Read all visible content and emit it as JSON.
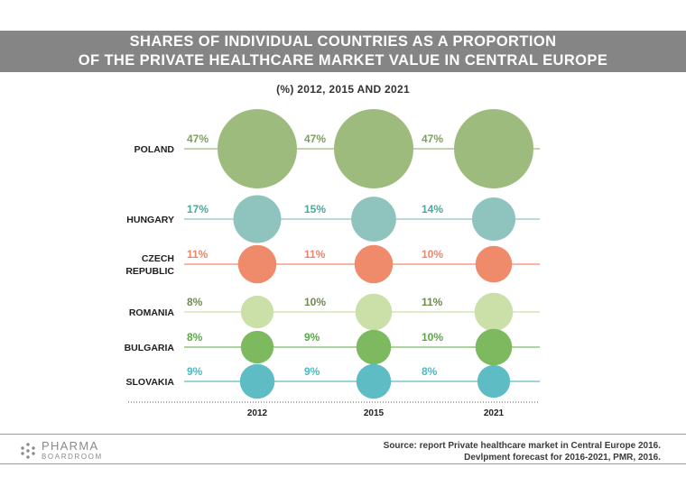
{
  "header": {
    "title_line1": "SHARES OF INDIVIDUAL COUNTRIES AS A PROPORTION",
    "title_line2": "OF THE PRIVATE HEALTHCARE MARKET VALUE IN CENTRAL EUROPE",
    "subtitle": "(%) 2012, 2015 AND 2021"
  },
  "chart_data": {
    "type": "scatter",
    "subtype": "bubble-matrix",
    "title": "SHARES OF INDIVIDUAL COUNTRIES AS A PROPORTION OF THE PRIVATE HEALTHCARE MARKET VALUE IN CENTRAL EUROPE",
    "subtitle": "(%) 2012, 2015 AND 2021",
    "unit": "%",
    "years": [
      "2012",
      "2015",
      "2021"
    ],
    "series": [
      {
        "name": "POLAND",
        "label_lines": [
          "POLAND"
        ],
        "color": "#9dbb7c",
        "text_color": "#7ea05a",
        "values": [
          47,
          47,
          47
        ],
        "labels": [
          "47%",
          "47%",
          "47%"
        ]
      },
      {
        "name": "HUNGARY",
        "label_lines": [
          "HUNGARY"
        ],
        "color": "#8fc3bd",
        "text_color": "#4aa89c",
        "values": [
          17,
          15,
          14
        ],
        "labels": [
          "17%",
          "15%",
          "14%"
        ]
      },
      {
        "name": "CZECH REPUBLIC",
        "label_lines": [
          "CZECH",
          "REPUBLIC"
        ],
        "color": "#ef8b6b",
        "text_color": "#e9866a",
        "values": [
          11,
          11,
          10
        ],
        "labels": [
          "11%",
          "11%",
          "10%"
        ]
      },
      {
        "name": "ROMANIA",
        "label_lines": [
          "ROMANIA"
        ],
        "color": "#cbe0a8",
        "text_color": "#6f8a52",
        "values": [
          8,
          10,
          11
        ],
        "labels": [
          "8%",
          "10%",
          "11%"
        ]
      },
      {
        "name": "BULGARIA",
        "label_lines": [
          "BULGARIA"
        ],
        "color": "#7dba5f",
        "text_color": "#5aa646",
        "values": [
          8,
          9,
          10
        ],
        "labels": [
          "8%",
          "9%",
          "10%"
        ]
      },
      {
        "name": "SLOVAKIA",
        "label_lines": [
          "SLOVAKIA"
        ],
        "color": "#5dbcc4",
        "text_color": "#52b6bf",
        "values": [
          9,
          9,
          8
        ],
        "labels": [
          "9%",
          "9%",
          "8%"
        ]
      }
    ]
  },
  "footer": {
    "logo_main": "PHARMA",
    "logo_sub": "BOARDROOM",
    "source_line1": "Source: report Private healthcare market in Central Europe 2016.",
    "source_line2": "Devlpment forecast for 2016-2021, PMR, 2016."
  }
}
